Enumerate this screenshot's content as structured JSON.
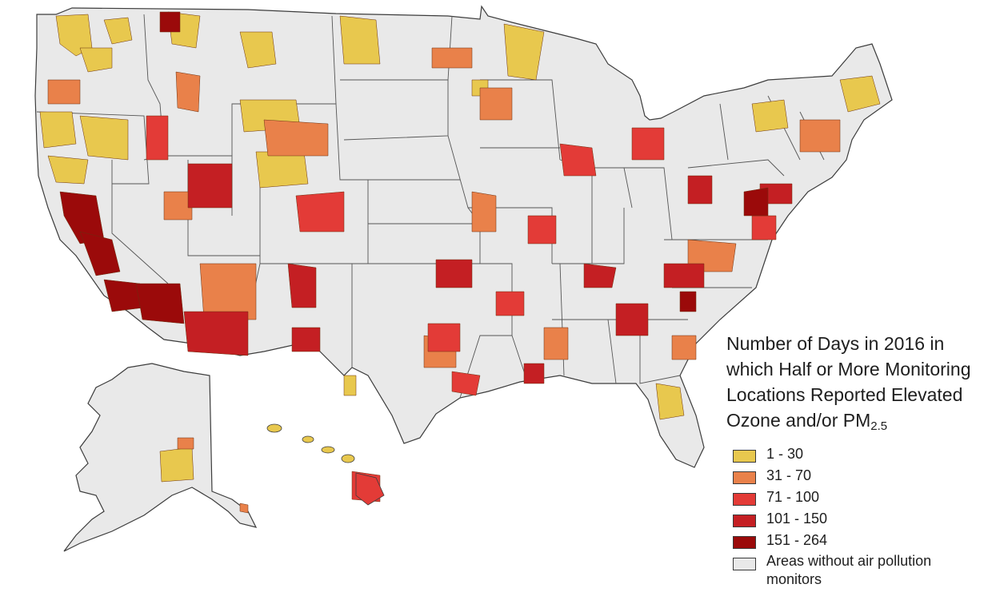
{
  "legend": {
    "title_line1": "Number of Days in 2016 in",
    "title_line2": "which Half or More Monitoring",
    "title_line3": "Locations Reported Elevated",
    "title_line4": "Ozone and/or PM",
    "title_sub": "2.5",
    "items": [
      {
        "label": "1 - 30",
        "color": "#e8c84e"
      },
      {
        "label": "31 - 70",
        "color": "#e9814a"
      },
      {
        "label": "71 - 100",
        "color": "#e33b37"
      },
      {
        "label": "101 - 150",
        "color": "#c41f23"
      },
      {
        "label": "151 - 264",
        "color": "#9b0a0a"
      },
      {
        "label": "Areas without air pollution monitors",
        "color": "#e9e9e9"
      }
    ]
  },
  "map": {
    "base_color": "#e9e9e9",
    "border_color": "#3c3c3c",
    "regions": [
      "contiguous-us",
      "alaska",
      "hawaii"
    ]
  }
}
